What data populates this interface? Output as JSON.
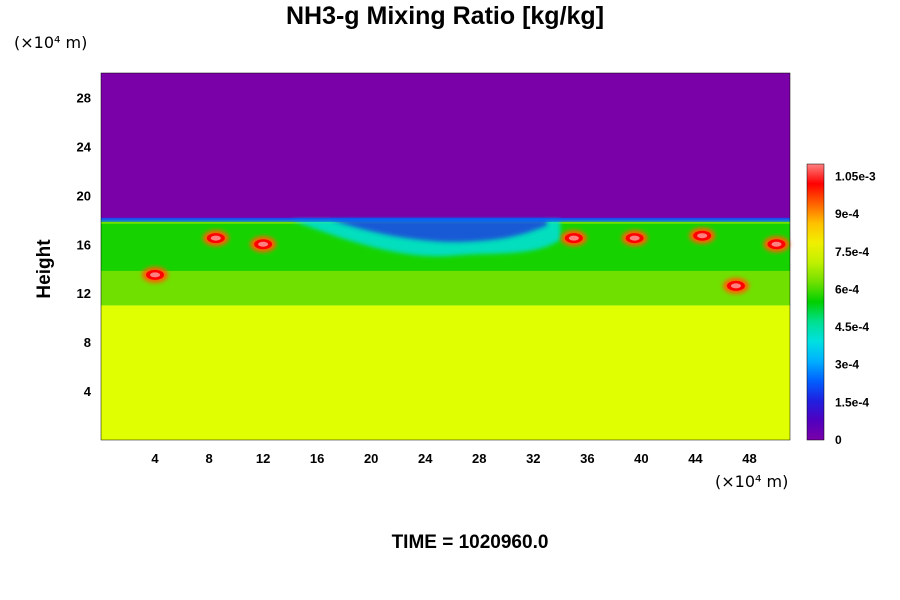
{
  "title": "NH3-g Mixing Ratio [kg/kg]",
  "y_unit": "(×10⁴ m)",
  "x_unit": "(×10⁴ m)",
  "time_label": "TIME = 1020960.0",
  "colors": {
    "zero": "#7a00a8",
    "lower_fill": "#e0ff00",
    "scale": [
      "#7a00a8",
      "#5000c0",
      "#2020e0",
      "#0060ff",
      "#00b0ff",
      "#00e0e0",
      "#00e090",
      "#00d000",
      "#70e000",
      "#c0f000",
      "#f0f000",
      "#ffc000",
      "#ff6000",
      "#ff0000",
      "#ff8080"
    ]
  },
  "chart_data": {
    "type": "heatmap",
    "title": "NH3-g Mixing Ratio [kg/kg]",
    "ylabel": "Height",
    "xlabel": "",
    "x_ticks": [
      "4",
      "8",
      "12",
      "16",
      "20",
      "24",
      "28",
      "32",
      "36",
      "40",
      "44",
      "48"
    ],
    "y_ticks": [
      "4",
      "8",
      "12",
      "16",
      "20",
      "24",
      "28"
    ],
    "xlim": [
      0,
      51
    ],
    "ylim": [
      0,
      30
    ],
    "colorbar": {
      "ticks": [
        "0",
        "1.5e-4",
        "3e-4",
        "4.5e-4",
        "6e-4",
        "7.5e-4",
        "9e-4",
        "1.05e-3"
      ],
      "range": [
        0,
        0.0011
      ]
    },
    "regions": [
      {
        "name": "upper-layer",
        "y_range": [
          18,
          30
        ],
        "value": 0
      },
      {
        "name": "lower-layer",
        "y_range": [
          0,
          11
        ],
        "value": 0.00078
      },
      {
        "name": "mixing-band",
        "y_range": [
          11,
          18
        ],
        "value_range": [
          0.0001,
          0.0011
        ]
      }
    ],
    "hotspots": [
      {
        "x": 4,
        "y": 13.5
      },
      {
        "x": 8.5,
        "y": 16.5
      },
      {
        "x": 12,
        "y": 16
      },
      {
        "x": 35,
        "y": 16.5
      },
      {
        "x": 39.5,
        "y": 16.5
      },
      {
        "x": 44.5,
        "y": 16.7
      },
      {
        "x": 47,
        "y": 12.6
      },
      {
        "x": 50,
        "y": 16
      }
    ]
  }
}
